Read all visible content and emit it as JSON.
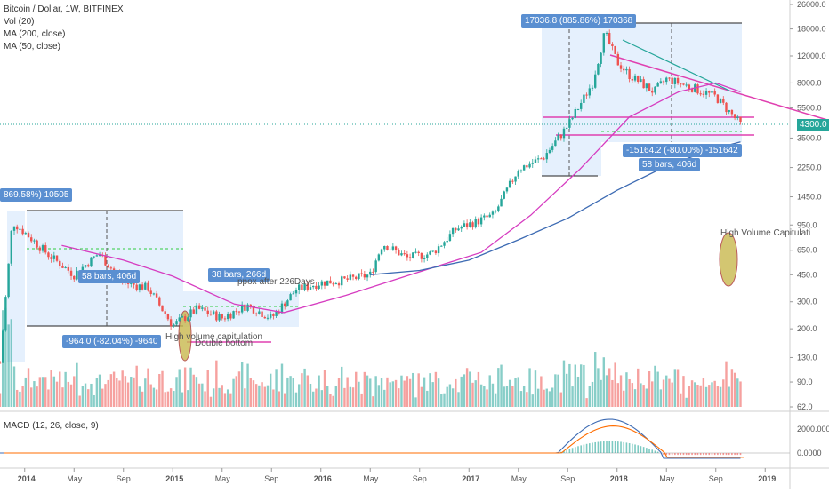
{
  "header": {
    "symbol_line": "Bitcoin / Dollar, 1W, BITFINEX",
    "vol_label": "Vol (20)",
    "ma200_label": "MA (200, close)",
    "ma50_label": "MA (50, close)",
    "macd_label": "MACD (12, 26, close, 9)"
  },
  "annotations": {
    "top_left_gain": "869.58%) 10505",
    "top_left_drop": "-964.0 (-82.04%) -9640",
    "top_left_bars": "58 bars, 406d",
    "mid_bars": "38 bars, 266d",
    "mid_note": "High volume capitulation",
    "mid_note2": "Double bottom",
    "mid_note3": "ppox after 226Days",
    "top_right_gain": "17036.8 (885.86%) 170368",
    "top_right_drop": "-15164.2 (-80.00%) -151642",
    "top_right_bars": "58 bars, 406d",
    "right_note": "High Volume Capitulati",
    "current_price": "4300.0"
  },
  "colors": {
    "up": "#26a69a",
    "down": "#ef5350",
    "ma200": "#3d6bb3",
    "ma50": "#d63cc0",
    "macd": "#3d6bb3",
    "signal": "#ff6d00",
    "box": "#cfe3fb",
    "capitulation": "#c9b84e",
    "trendline": "#e040b0"
  },
  "chart_data": {
    "type": "line",
    "title": "Bitcoin / Dollar, 1W, BITFINEX",
    "xlabel": "",
    "ylabel": "",
    "y_scale": "log",
    "x_tick_labels": [
      "2014",
      "May",
      "Sep",
      "2015",
      "May",
      "Sep",
      "2016",
      "May",
      "Sep",
      "2017",
      "May",
      "Sep",
      "2018",
      "May",
      "Sep",
      "2019"
    ],
    "y_tick_labels": [
      "26000.0",
      "18000.0",
      "12000.0",
      "8000.0",
      "5500.0",
      "3500.0",
      "2250.0",
      "1450.0",
      "950.0",
      "650.0",
      "450.0",
      "300.0",
      "200.0",
      "130.0",
      "90.0",
      "62.0"
    ],
    "macd_tick_labels": [
      "2000.0000",
      "0.0000"
    ],
    "price_series": [
      {
        "date": "2013-11",
        "price": 120
      },
      {
        "date": "2013-12",
        "price": 1000
      },
      {
        "date": "2014-01",
        "price": 850
      },
      {
        "date": "2014-03",
        "price": 600
      },
      {
        "date": "2014-05",
        "price": 450
      },
      {
        "date": "2014-07",
        "price": 620
      },
      {
        "date": "2014-09",
        "price": 400
      },
      {
        "date": "2014-11",
        "price": 370
      },
      {
        "date": "2015-01",
        "price": 210
      },
      {
        "date": "2015-03",
        "price": 270
      },
      {
        "date": "2015-05",
        "price": 235
      },
      {
        "date": "2015-07",
        "price": 285
      },
      {
        "date": "2015-09",
        "price": 235
      },
      {
        "date": "2015-11",
        "price": 360
      },
      {
        "date": "2016-01",
        "price": 400
      },
      {
        "date": "2016-03",
        "price": 415
      },
      {
        "date": "2016-05",
        "price": 450
      },
      {
        "date": "2016-06",
        "price": 720
      },
      {
        "date": "2016-08",
        "price": 580
      },
      {
        "date": "2016-10",
        "price": 620
      },
      {
        "date": "2016-12",
        "price": 900
      },
      {
        "date": "2017-01",
        "price": 960
      },
      {
        "date": "2017-03",
        "price": 1100
      },
      {
        "date": "2017-05",
        "price": 2200
      },
      {
        "date": "2017-07",
        "price": 2600
      },
      {
        "date": "2017-09",
        "price": 4200
      },
      {
        "date": "2017-11",
        "price": 8000
      },
      {
        "date": "2017-12",
        "price": 17000
      },
      {
        "date": "2018-01",
        "price": 11000
      },
      {
        "date": "2018-02",
        "price": 9000
      },
      {
        "date": "2018-04",
        "price": 7000
      },
      {
        "date": "2018-05",
        "price": 8500
      },
      {
        "date": "2018-07",
        "price": 7500
      },
      {
        "date": "2018-09",
        "price": 6500
      },
      {
        "date": "2018-11",
        "price": 4300
      }
    ],
    "ma50_series": [
      {
        "date": "2014-04",
        "price": 700
      },
      {
        "date": "2014-09",
        "price": 560
      },
      {
        "date": "2015-01",
        "price": 440
      },
      {
        "date": "2015-06",
        "price": 290
      },
      {
        "date": "2015-10",
        "price": 255
      },
      {
        "date": "2016-03",
        "price": 330
      },
      {
        "date": "2016-09",
        "price": 470
      },
      {
        "date": "2017-02",
        "price": 630
      },
      {
        "date": "2017-06",
        "price": 1100
      },
      {
        "date": "2017-10",
        "price": 2200
      },
      {
        "date": "2018-02",
        "price": 4800
      },
      {
        "date": "2018-06",
        "price": 7000
      },
      {
        "date": "2018-09",
        "price": 8000
      },
      {
        "date": "2018-11",
        "price": 7000
      }
    ],
    "ma200_series": [
      {
        "date": "2016-05",
        "price": 450
      },
      {
        "date": "2016-09",
        "price": 480
      },
      {
        "date": "2017-01",
        "price": 560
      },
      {
        "date": "2017-05",
        "price": 760
      },
      {
        "date": "2017-09",
        "price": 1050
      },
      {
        "date": "2018-01",
        "price": 1600
      },
      {
        "date": "2018-05",
        "price": 2300
      },
      {
        "date": "2018-09",
        "price": 3000
      },
      {
        "date": "2018-11",
        "price": 3300
      }
    ],
    "current_price": 4300
  }
}
